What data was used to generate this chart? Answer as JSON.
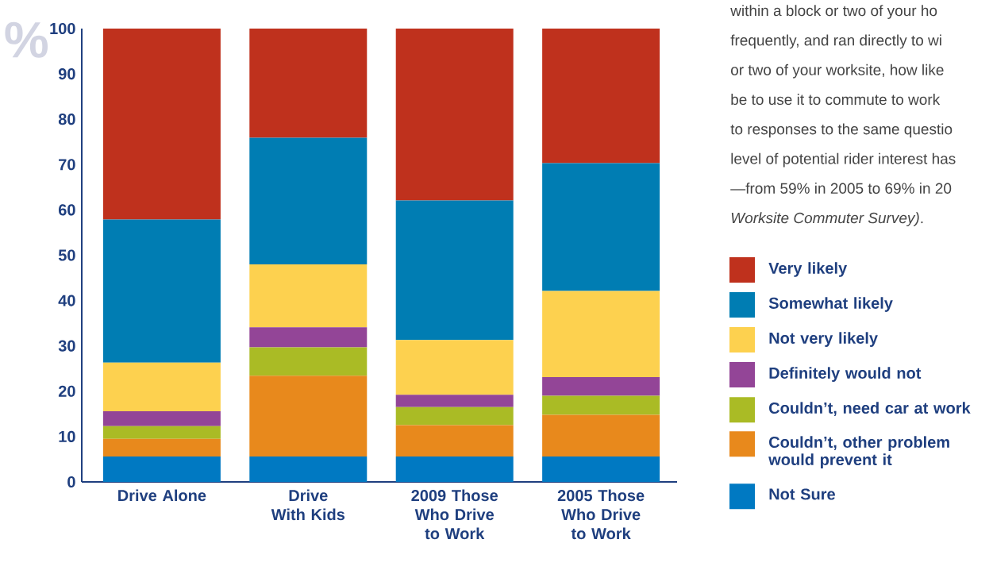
{
  "chart_data": {
    "type": "bar",
    "stacked": true,
    "ylabel": "%",
    "categories": [
      "Drive Alone",
      "Drive With Kids",
      "2009 Those Who Drive to Work",
      "2005 Those Who Drive to Work"
    ],
    "series": [
      {
        "name": "Not Sure",
        "color": "#0079c2",
        "values": [
          5.6,
          5.6,
          5.6,
          5.6
        ]
      },
      {
        "name": "Couldn’t, other problem would prevent it",
        "color": "#e8891c",
        "values": [
          3.9,
          17.8,
          6.9,
          9.2
        ]
      },
      {
        "name": "Couldn’t, need car at work",
        "color": "#aabb25",
        "values": [
          2.8,
          6.3,
          4.0,
          4.2
        ]
      },
      {
        "name": "Definitely would not",
        "color": "#934597",
        "values": [
          3.3,
          4.4,
          2.7,
          4.1
        ]
      },
      {
        "name": "Not very likely",
        "color": "#fdd14f",
        "values": [
          10.7,
          13.9,
          12.1,
          19.0
        ]
      },
      {
        "name": "Somewhat likely",
        "color": "#007db3",
        "values": [
          31.6,
          27.9,
          30.8,
          28.2
        ]
      },
      {
        "name": "Very likely",
        "color": "#bf311d",
        "values": [
          42.1,
          24.1,
          37.9,
          29.7
        ]
      }
    ],
    "ylim": [
      0,
      100
    ],
    "yticks": [
      0,
      10,
      20,
      30,
      40,
      50,
      60,
      70,
      80,
      90,
      100
    ],
    "legend": "right",
    "annotations": [
      "within a block or two of your ho",
      "frequently, and ran directly to wi",
      "or two of your worksite, how like",
      "be to use it to commute to work",
      "to responses to the same questio",
      "level of potential rider interest has",
      "—from 59% in 2005 to 69% in 20",
      "*Worksite Commuter Survey)*."
    ]
  }
}
